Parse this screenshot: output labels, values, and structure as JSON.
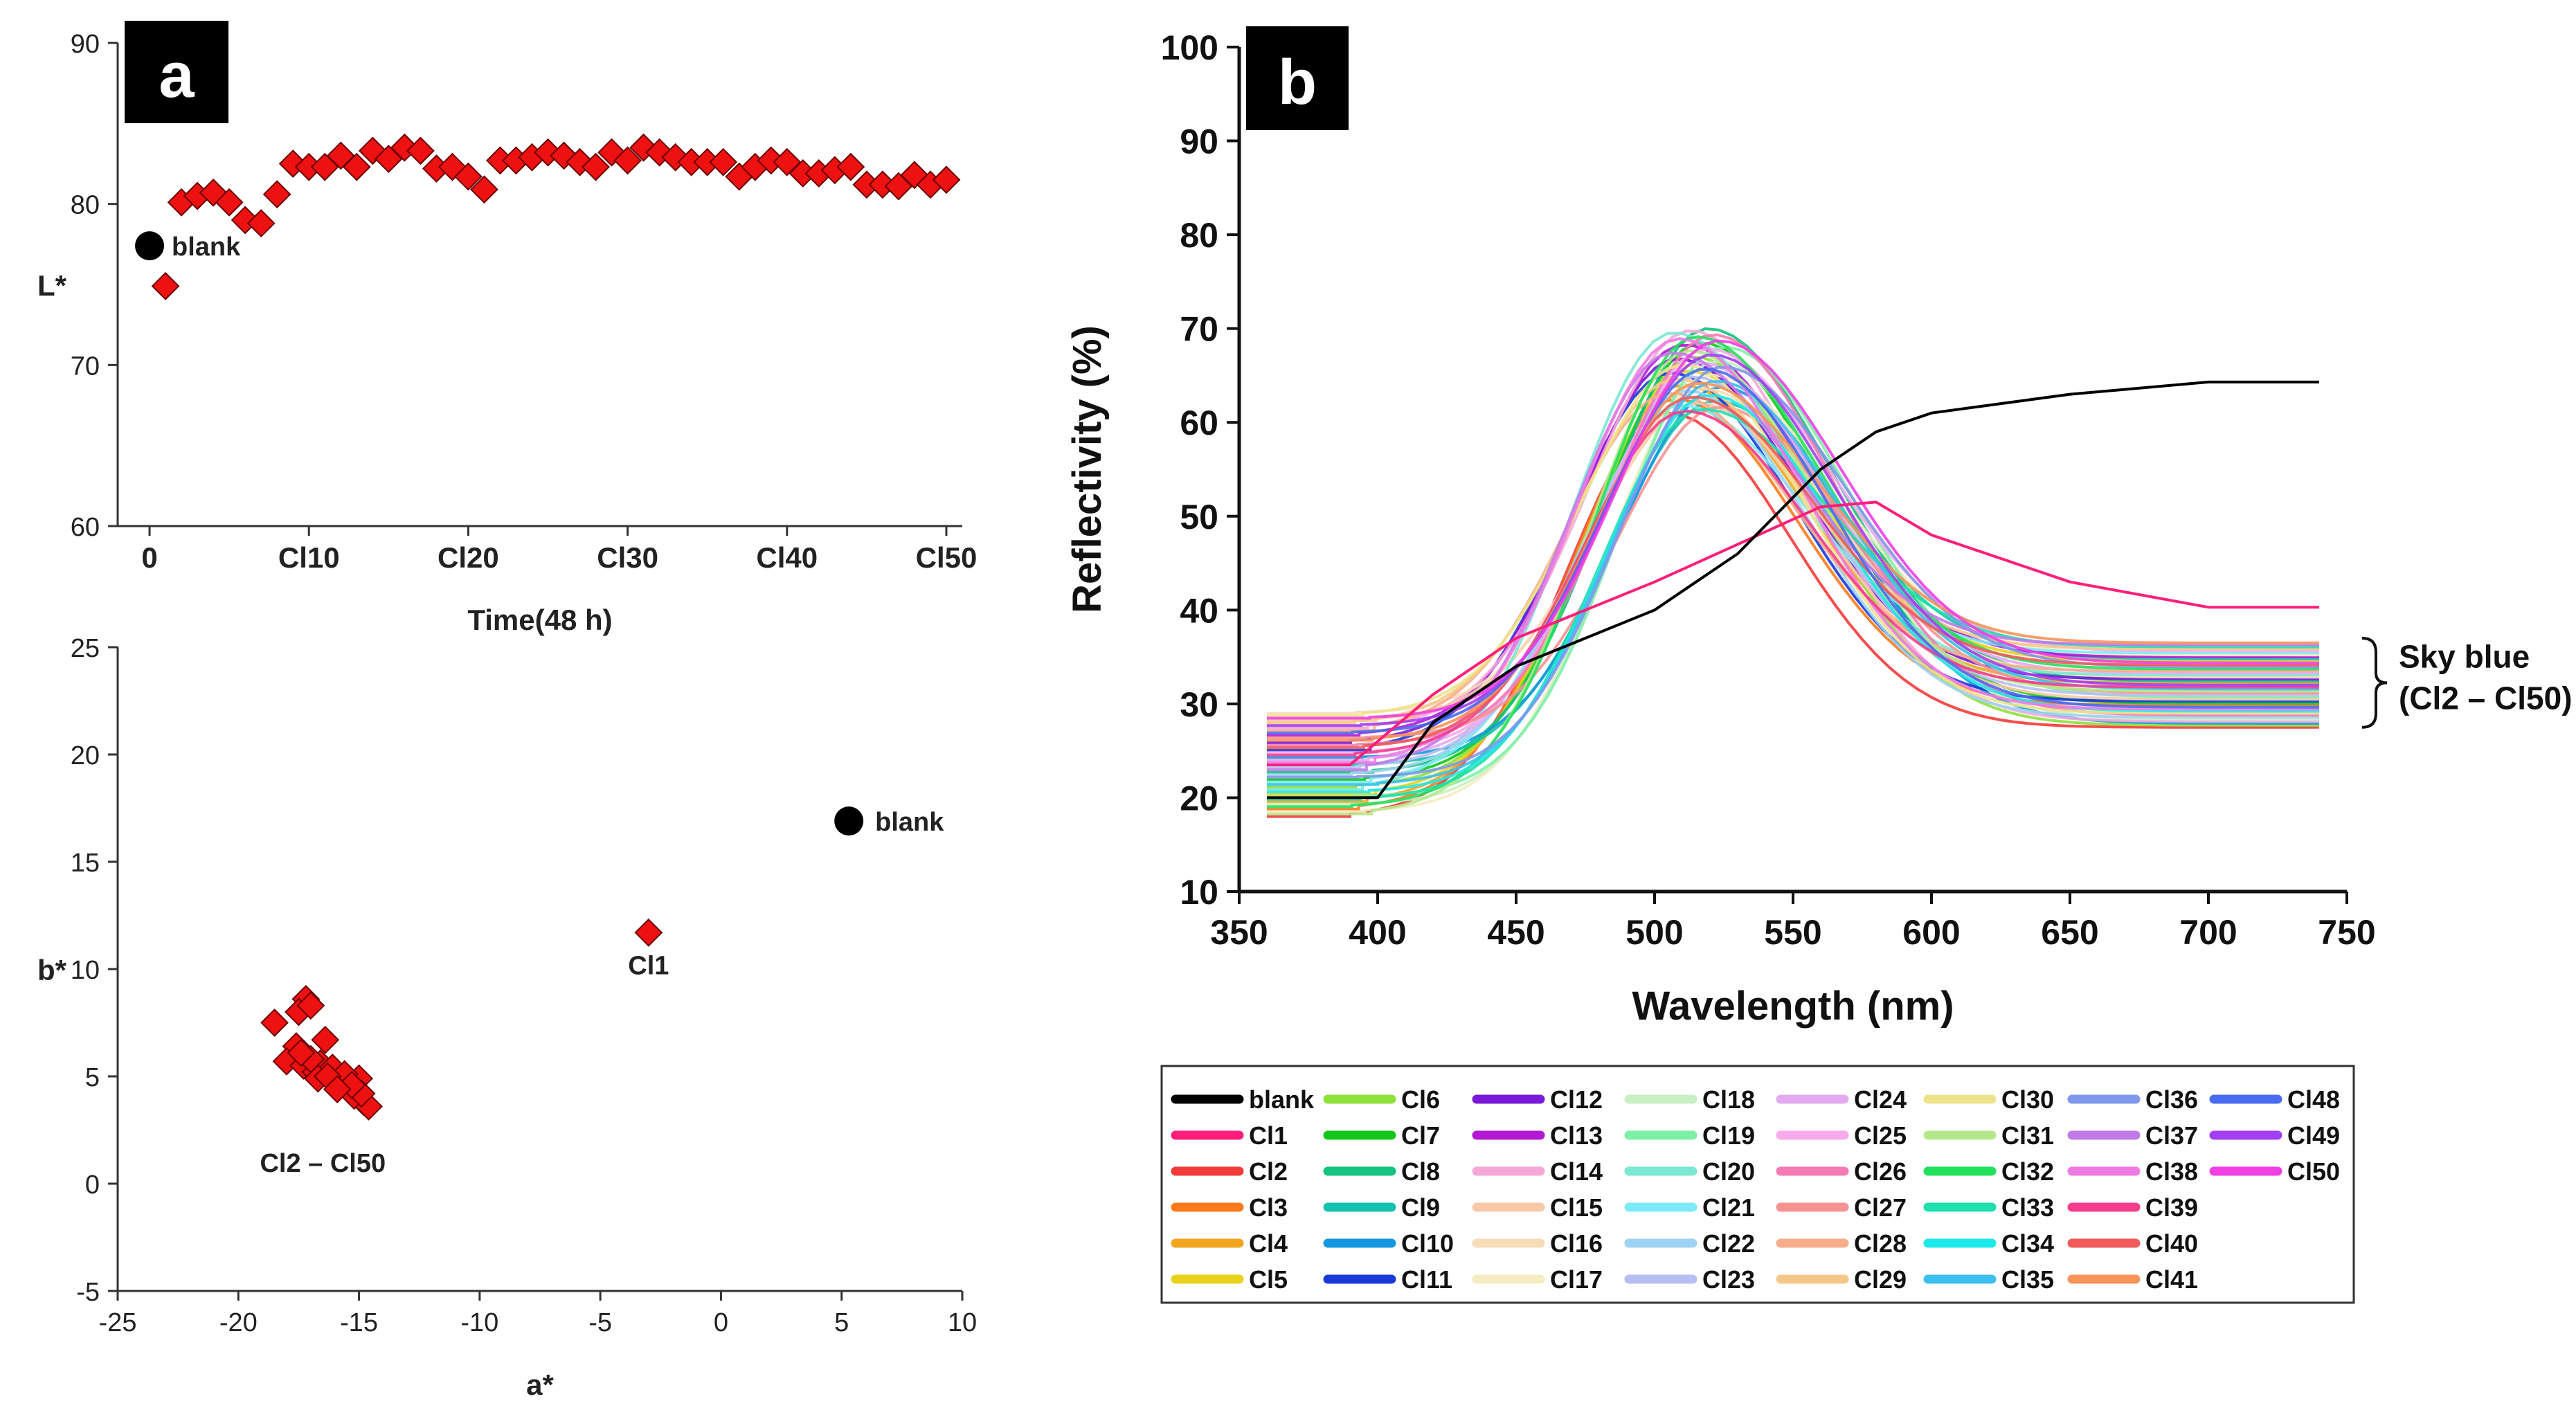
{
  "panels": {
    "a": "a",
    "b": "b"
  },
  "chart_data": [
    {
      "id": "a-top",
      "type": "scatter",
      "xlabel": "Time(48 h)",
      "ylabel": "L*",
      "xlim": [
        -2,
        51
      ],
      "ylim": [
        60,
        90
      ],
      "yticks": [
        60,
        70,
        80,
        90
      ],
      "xticks": [
        {
          "v": 0,
          "label": "0"
        },
        {
          "v": 10,
          "label": "Cl10"
        },
        {
          "v": 20,
          "label": "Cl20"
        },
        {
          "v": 30,
          "label": "Cl30"
        },
        {
          "v": 40,
          "label": "Cl40"
        },
        {
          "v": 50,
          "label": "Cl50"
        }
      ],
      "blank": {
        "x": 0,
        "y": 77.4,
        "label": "blank"
      },
      "series": [
        {
          "name": "Cl",
          "x": [
            1,
            2,
            3,
            4,
            5,
            6,
            7,
            8,
            9,
            10,
            11,
            12,
            13,
            14,
            15,
            16,
            17,
            18,
            19,
            20,
            21,
            22,
            23,
            24,
            25,
            26,
            27,
            28,
            29,
            30,
            31,
            32,
            33,
            34,
            35,
            36,
            37,
            38,
            39,
            40,
            41,
            42,
            43,
            44,
            45,
            46,
            47,
            48,
            49,
            50
          ],
          "y": [
            74.9,
            80.1,
            80.5,
            80.7,
            80.1,
            79.0,
            78.8,
            80.6,
            82.5,
            82.3,
            82.3,
            83.0,
            82.3,
            83.3,
            82.8,
            83.5,
            83.3,
            82.2,
            82.3,
            81.7,
            80.9,
            82.7,
            82.7,
            82.9,
            83.2,
            83.0,
            82.6,
            82.3,
            83.2,
            82.7,
            83.5,
            83.2,
            82.9,
            82.6,
            82.6,
            82.6,
            81.7,
            82.3,
            82.7,
            82.6,
            81.9,
            81.9,
            82.1,
            82.3,
            81.2,
            81.2,
            81.1,
            81.8,
            81.2,
            81.5
          ]
        }
      ]
    },
    {
      "id": "a-bottom",
      "type": "scatter",
      "xlabel": "a*",
      "ylabel": "b*",
      "xlim": [
        -25,
        10
      ],
      "ylim": [
        -5,
        25
      ],
      "xticks": [
        -25,
        -20,
        -15,
        -10,
        -5,
        0,
        5,
        10
      ],
      "yticks": [
        -5,
        0,
        5,
        10,
        15,
        20,
        25
      ],
      "blank": {
        "x": 5.3,
        "y": 16.9,
        "label": "blank"
      },
      "cl1": {
        "x": -3.0,
        "y": 11.7,
        "label": "Cl1"
      },
      "cluster_label": "Cl2 – Cl50",
      "series": [
        {
          "name": "Cl2-Cl50",
          "points": [
            [
              -18.5,
              7.5
            ],
            [
              -17.2,
              8.6
            ],
            [
              -17.5,
              8.0
            ],
            [
              -17.0,
              8.3
            ],
            [
              -17.6,
              6.4
            ],
            [
              -18.0,
              5.7
            ],
            [
              -17.3,
              5.5
            ],
            [
              -16.8,
              5.2
            ],
            [
              -16.4,
              6.7
            ],
            [
              -16.6,
              5.6
            ],
            [
              -16.0,
              5.1
            ],
            [
              -15.8,
              4.8
            ],
            [
              -15.4,
              4.4
            ],
            [
              -15.0,
              4.9
            ],
            [
              -14.8,
              3.8
            ],
            [
              -14.6,
              3.6
            ],
            [
              -15.2,
              4.1
            ],
            [
              -16.1,
              5.4
            ],
            [
              -16.7,
              4.9
            ],
            [
              -17.0,
              5.8
            ],
            [
              -15.6,
              5.1
            ],
            [
              -14.9,
              4.2
            ],
            [
              -16.3,
              5.0
            ],
            [
              -17.4,
              6.1
            ],
            [
              -15.3,
              4.6
            ],
            [
              -15.9,
              4.4
            ]
          ]
        }
      ]
    },
    {
      "id": "b",
      "type": "line",
      "xlabel": "Wavelength (nm)",
      "ylabel": "Reflectivity (%)",
      "xlim": [
        350,
        750
      ],
      "ylim": [
        10,
        100
      ],
      "xticks": [
        350,
        400,
        450,
        500,
        550,
        600,
        650,
        700,
        750
      ],
      "yticks": [
        10,
        20,
        30,
        40,
        50,
        60,
        70,
        80,
        90,
        100
      ],
      "bracket_label": [
        "Sky blue",
        "(Cl2 – Cl50)"
      ],
      "blank_curve": {
        "x": [
          360,
          400,
          420,
          450,
          500,
          530,
          560,
          580,
          600,
          650,
          700,
          740
        ],
        "y": [
          20,
          20,
          28,
          34,
          40,
          46,
          55,
          59,
          61,
          63,
          64.3,
          64.3
        ]
      },
      "cl1_curve": {
        "x": [
          360,
          390,
          420,
          450,
          500,
          530,
          560,
          580,
          600,
          650,
          700,
          740
        ],
        "y": [
          23.5,
          23.5,
          31,
          37,
          43,
          47,
          51,
          51.5,
          48,
          43,
          40.3,
          40.3
        ]
      },
      "sky_blue_band": {
        "peak_wavelength_range": [
          505,
          525
        ],
        "peak_min": 61,
        "peak_max": 70,
        "tail_min": 27.5,
        "tail_max": 36.5
      }
    }
  ],
  "legend": [
    {
      "label": "blank",
      "color": "#000000"
    },
    {
      "label": "Cl1",
      "color": "#ff1f7a"
    },
    {
      "label": "Cl2",
      "color": "#f53a3a"
    },
    {
      "label": "Cl3",
      "color": "#ff7a1a"
    },
    {
      "label": "Cl4",
      "color": "#f2a51f"
    },
    {
      "label": "Cl5",
      "color": "#e8d21c"
    },
    {
      "label": "Cl6",
      "color": "#8ee03b"
    },
    {
      "label": "Cl7",
      "color": "#13c81a"
    },
    {
      "label": "Cl8",
      "color": "#15c27e"
    },
    {
      "label": "Cl9",
      "color": "#15c2b0"
    },
    {
      "label": "Cl10",
      "color": "#1598e0"
    },
    {
      "label": "Cl11",
      "color": "#1a3ad8"
    },
    {
      "label": "Cl12",
      "color": "#7a1ad8"
    },
    {
      "label": "Cl13",
      "color": "#b31ad3"
    },
    {
      "label": "Cl14",
      "color": "#f5a8d8"
    },
    {
      "label": "Cl15",
      "color": "#f7c9a8"
    },
    {
      "label": "Cl16",
      "color": "#f7dcb8"
    },
    {
      "label": "Cl17",
      "color": "#f5ecc2"
    },
    {
      "label": "Cl18",
      "color": "#c9efc4"
    },
    {
      "label": "Cl19",
      "color": "#7ef0a6"
    },
    {
      "label": "Cl20",
      "color": "#7ae8d2"
    },
    {
      "label": "Cl21",
      "color": "#7cebf7"
    },
    {
      "label": "Cl22",
      "color": "#9ed3f3"
    },
    {
      "label": "Cl23",
      "color": "#b7bff2"
    },
    {
      "label": "Cl24",
      "color": "#e3aaf0"
    },
    {
      "label": "Cl25",
      "color": "#f7aaec"
    },
    {
      "label": "Cl26",
      "color": "#f57ab3"
    },
    {
      "label": "Cl27",
      "color": "#f79292"
    },
    {
      "label": "Cl28",
      "color": "#f7ad8a"
    },
    {
      "label": "Cl29",
      "color": "#f5c88a"
    },
    {
      "label": "Cl30",
      "color": "#ede38a"
    },
    {
      "label": "Cl31",
      "color": "#b5e88a"
    },
    {
      "label": "Cl32",
      "color": "#23e05c"
    },
    {
      "label": "Cl33",
      "color": "#1ee0ad"
    },
    {
      "label": "Cl34",
      "color": "#1ee8e8"
    },
    {
      "label": "Cl35",
      "color": "#3cc0f0"
    },
    {
      "label": "Cl36",
      "color": "#8097ea"
    },
    {
      "label": "Cl37",
      "color": "#c17ae8"
    },
    {
      "label": "Cl38",
      "color": "#f07ae3"
    },
    {
      "label": "Cl39",
      "color": "#f53d8c"
    },
    {
      "label": "Cl40",
      "color": "#f05a5a"
    },
    {
      "label": "Cl41",
      "color": "#f7945a"
    },
    {
      "label": "Cl48",
      "color": "#4a6cf0"
    },
    {
      "label": "Cl49",
      "color": "#a23ff0"
    },
    {
      "label": "Cl50",
      "color": "#f03fe3"
    }
  ]
}
